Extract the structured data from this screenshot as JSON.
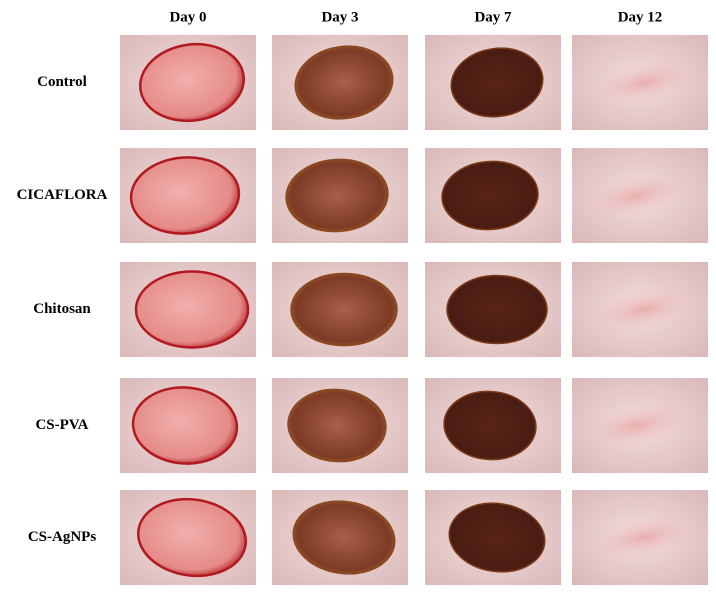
{
  "columns": [
    "Day 0",
    "Day 3",
    "Day 7",
    "Day 12"
  ],
  "rows": [
    "Control",
    "CICAFLORA",
    "Chitosan",
    "CS-PVA",
    "CS-AgNPs"
  ]
}
